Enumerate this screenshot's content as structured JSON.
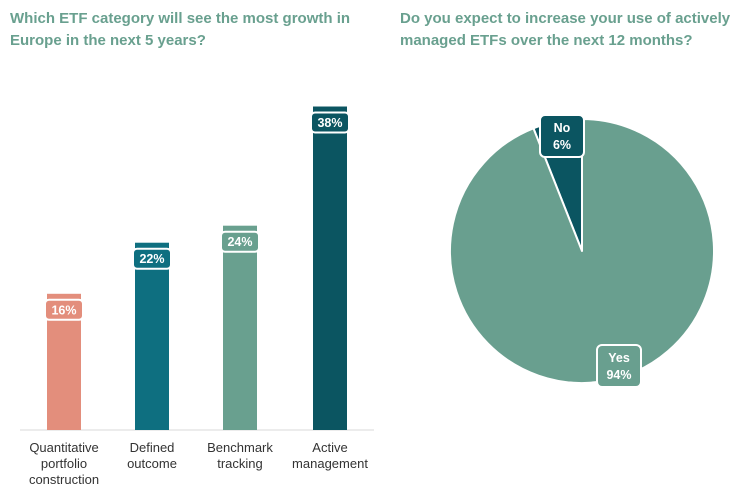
{
  "chart_data": [
    {
      "type": "bar",
      "title": "Which ETF category will see the most growth in Europe in the next 5 years?",
      "categories": [
        [
          "Quantitative",
          "portfolio",
          "construction"
        ],
        [
          "Defined",
          "outcome"
        ],
        [
          "Benchmark",
          "tracking"
        ],
        [
          "Active",
          "management"
        ]
      ],
      "values": [
        16,
        22,
        24,
        38
      ],
      "data_labels": [
        "16%",
        "22%",
        "24%",
        "38%"
      ],
      "unit": "%",
      "ylim": [
        0,
        39
      ],
      "grid": false,
      "colors": [
        "#e38e7c",
        "#0e6f80",
        "#69a08f",
        "#0b5561"
      ]
    },
    {
      "type": "pie",
      "title": "Do you expect to increase your use of actively managed ETFs over the next 12 months?",
      "slices": [
        {
          "label": "Yes",
          "value": 94,
          "display": "94%",
          "color": "#699f8f"
        },
        {
          "label": "No",
          "value": 6,
          "display": "6%",
          "color": "#0b5561"
        }
      ]
    }
  ]
}
